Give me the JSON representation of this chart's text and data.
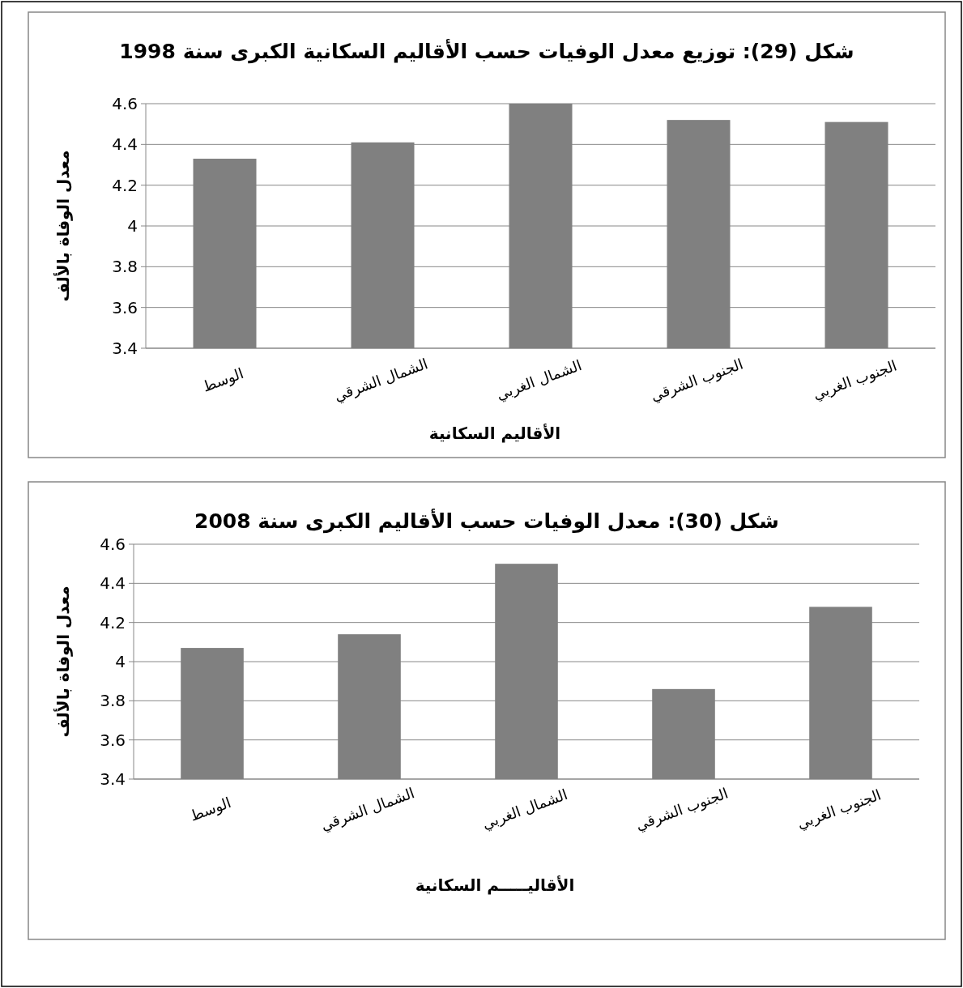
{
  "chart_data": [
    {
      "type": "bar",
      "title": "شكل (29): توزيع معدل الوفيات حسب الأقاليم السكانية الكبرى سنة 1998",
      "xlabel": "الأقاليم السكانية",
      "ylabel": "معدل الوفاة بالألف",
      "categories": [
        "الوسط",
        "الشمال الشرقي",
        "الشمال الغربي",
        "الجنوب الشرقي",
        "الجنوب الغربي"
      ],
      "values": [
        4.33,
        4.41,
        4.6,
        4.52,
        4.51
      ],
      "color": "#808080",
      "ylim": [
        3.4,
        4.6
      ],
      "yticks": [
        3.4,
        3.6,
        3.8,
        4,
        4.2,
        4.4,
        4.6
      ],
      "grid": "y"
    },
    {
      "type": "bar",
      "title": "شكل (30): معدل الوفيات حسب الأقاليم الكبرى سنة 2008",
      "xlabel": "الأقاليـــــم السكانية",
      "ylabel": "معدل الوفاة بالألف",
      "categories": [
        "الوسط",
        "الشمال الشرقي",
        "الشمال الغربي",
        "الجنوب الشرقي",
        "الجنوب الغربي"
      ],
      "values": [
        4.07,
        4.14,
        4.5,
        3.86,
        4.28
      ],
      "color": "#808080",
      "ylim": [
        3.4,
        4.6
      ],
      "yticks": [
        3.4,
        3.6,
        3.8,
        4,
        4.2,
        4.4,
        4.6
      ],
      "grid": "y"
    }
  ]
}
